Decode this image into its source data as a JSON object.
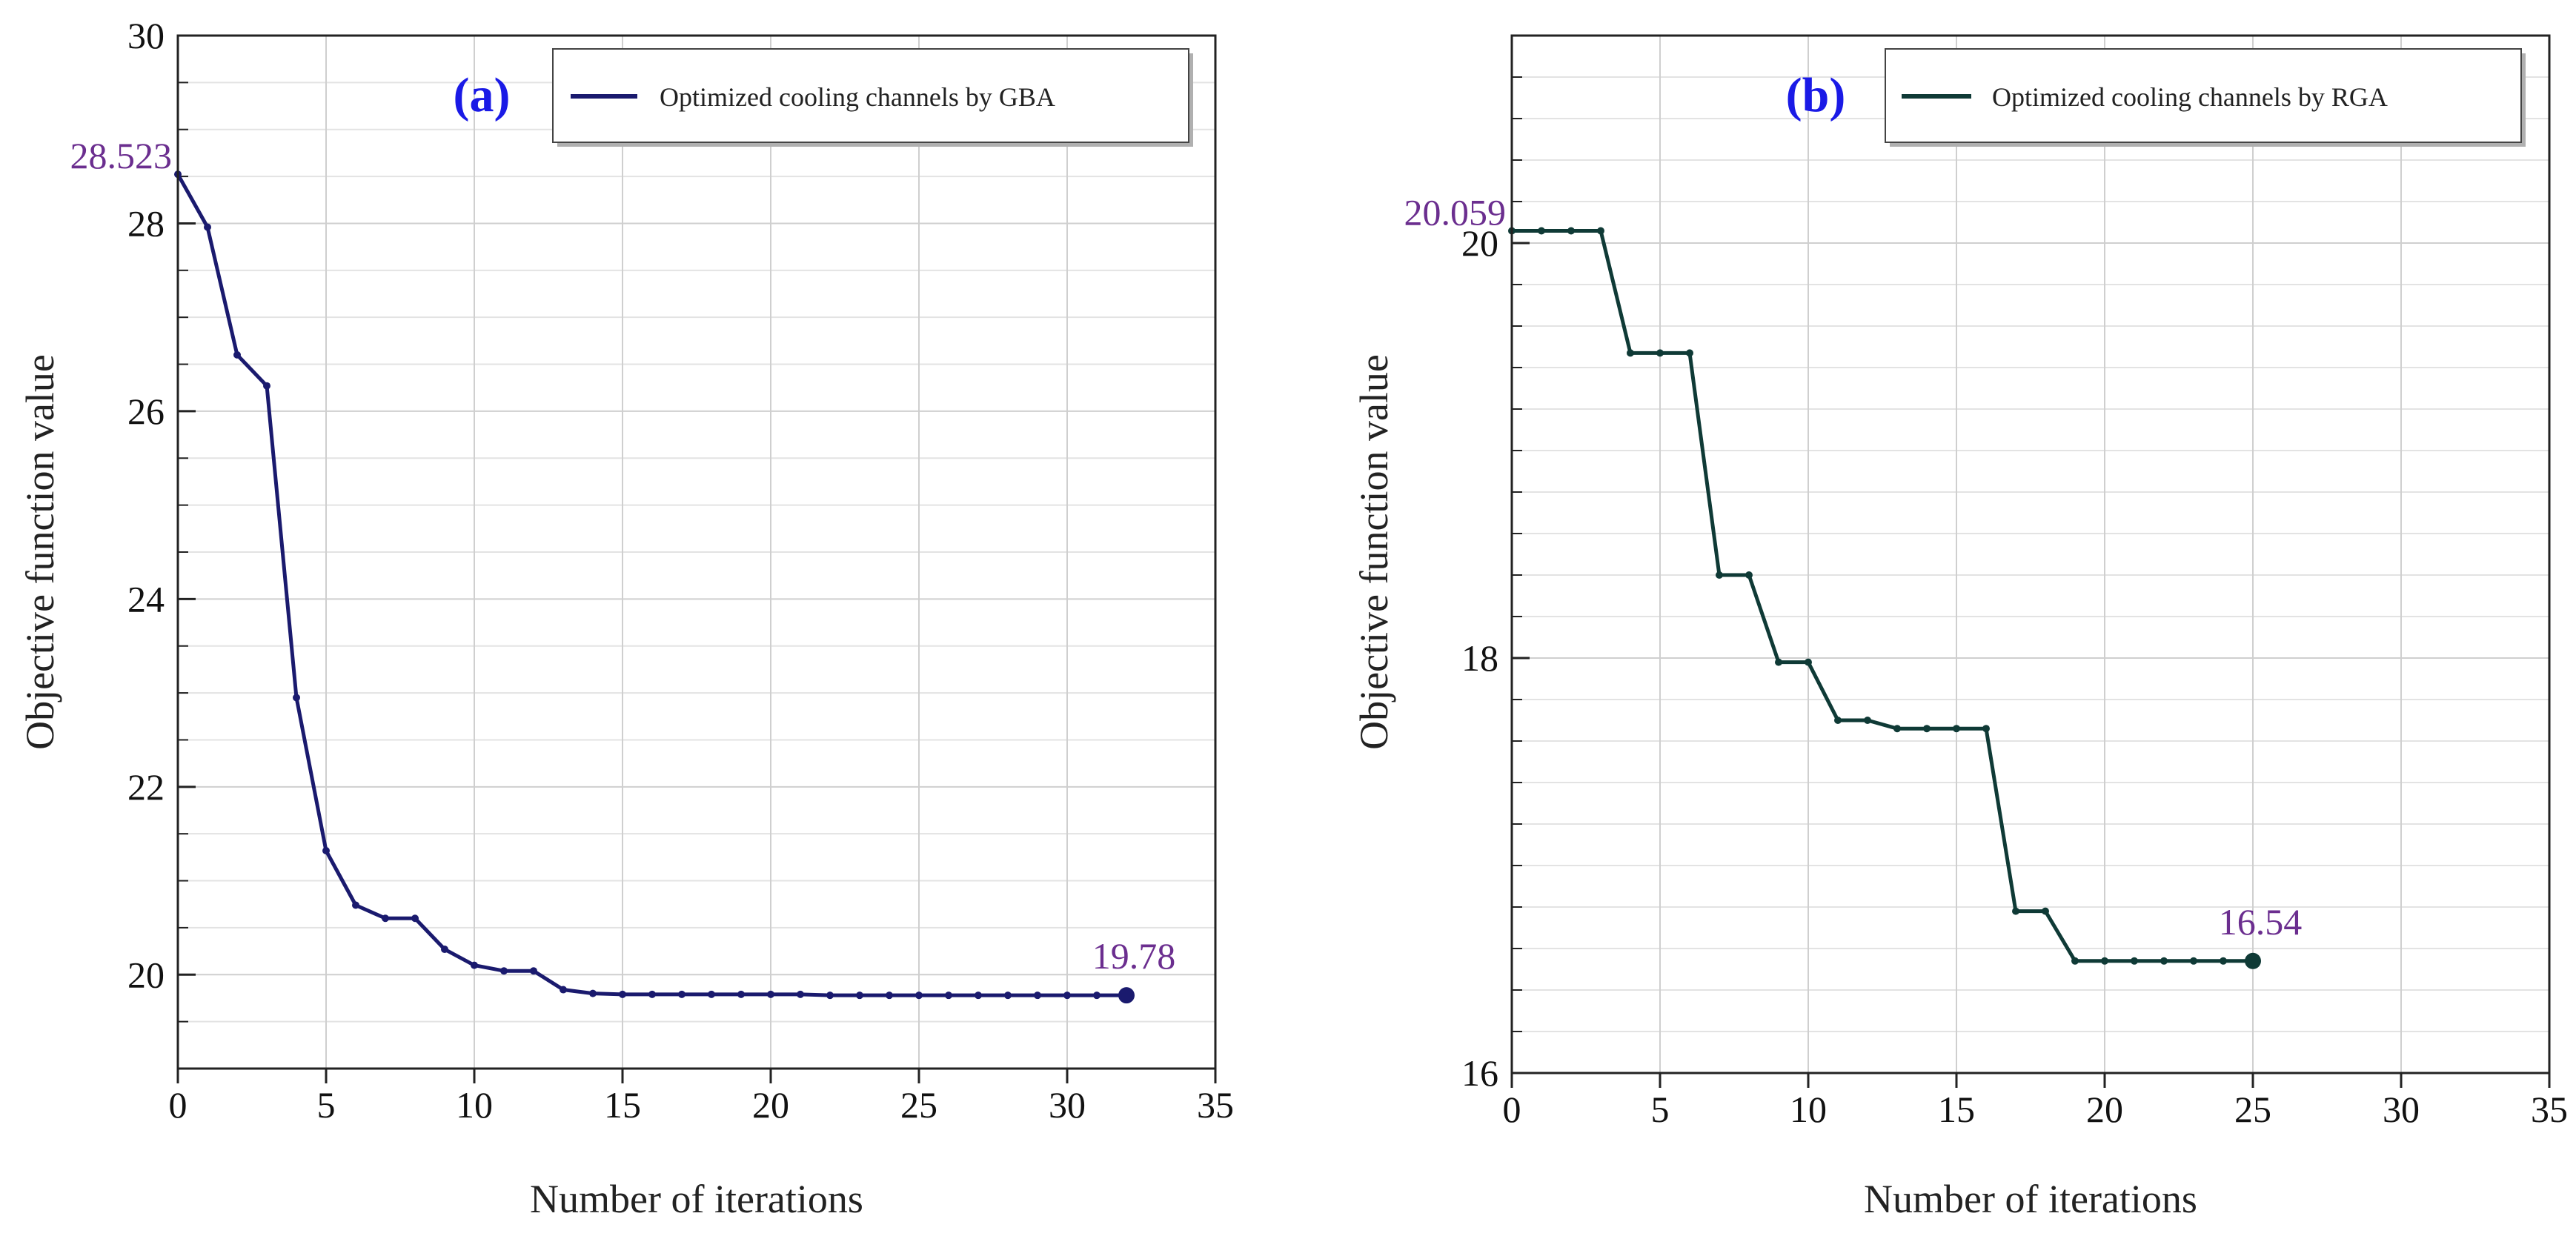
{
  "chart_data": [
    {
      "type": "line",
      "panel_label": "(a)",
      "xlabel": "Number of iterations",
      "ylabel": "Objective function value",
      "xlim": [
        0,
        35
      ],
      "ylim": [
        19,
        30
      ],
      "xticks": [
        0,
        5,
        10,
        15,
        20,
        25,
        30,
        35
      ],
      "yticks": [
        20,
        22,
        24,
        26,
        28,
        30
      ],
      "ytick_minor_step": 0.5,
      "grid": true,
      "legend_position": "top-right",
      "series": [
        {
          "name": "Optimized cooling channels by GBA",
          "color": "#1a1a6e",
          "x": [
            0,
            1,
            2,
            3,
            4,
            5,
            6,
            7,
            8,
            9,
            10,
            11,
            12,
            13,
            14,
            15,
            16,
            17,
            18,
            19,
            20,
            21,
            22,
            23,
            24,
            25,
            26,
            27,
            28,
            29,
            30,
            31,
            32
          ],
          "y": [
            28.523,
            27.96,
            26.6,
            26.27,
            22.95,
            21.32,
            20.74,
            20.6,
            20.6,
            20.27,
            20.1,
            20.04,
            20.04,
            19.84,
            19.8,
            19.79,
            19.79,
            19.79,
            19.79,
            19.79,
            19.79,
            19.79,
            19.78,
            19.78,
            19.78,
            19.78,
            19.78,
            19.78,
            19.78,
            19.78,
            19.78,
            19.78,
            19.78
          ]
        }
      ],
      "annotations": [
        {
          "text": "28.523",
          "x": 0,
          "y": 28.523,
          "anchor": "left"
        },
        {
          "text": "19.78",
          "x": 32,
          "y": 19.78,
          "anchor": "above"
        }
      ]
    },
    {
      "type": "line",
      "panel_label": "(b)",
      "xlabel": "Number of iterations",
      "ylabel": "Objective function value",
      "xlim": [
        0,
        35
      ],
      "ylim": [
        16,
        21
      ],
      "xticks": [
        0,
        5,
        10,
        15,
        20,
        25,
        30,
        35
      ],
      "yticks": [
        16,
        18,
        20
      ],
      "ytick_minor_step": 0.2,
      "grid": true,
      "legend_position": "top-right",
      "series": [
        {
          "name": "Optimized cooling channels by RGA",
          "color": "#0f3a36",
          "x": [
            0,
            1,
            2,
            3,
            4,
            5,
            6,
            7,
            8,
            9,
            10,
            11,
            12,
            13,
            14,
            15,
            16,
            17,
            18,
            19,
            20,
            21,
            22,
            23,
            24,
            25
          ],
          "y": [
            20.059,
            20.059,
            20.059,
            20.059,
            19.47,
            19.47,
            19.47,
            18.4,
            18.4,
            17.98,
            17.98,
            17.7,
            17.7,
            17.66,
            17.66,
            17.66,
            17.66,
            16.78,
            16.78,
            16.54,
            16.54,
            16.54,
            16.54,
            16.54,
            16.54,
            16.54
          ]
        }
      ],
      "annotations": [
        {
          "text": "20.059",
          "x": 0,
          "y": 20.059,
          "anchor": "left"
        },
        {
          "text": "16.54",
          "x": 25,
          "y": 16.54,
          "anchor": "above"
        }
      ]
    }
  ]
}
